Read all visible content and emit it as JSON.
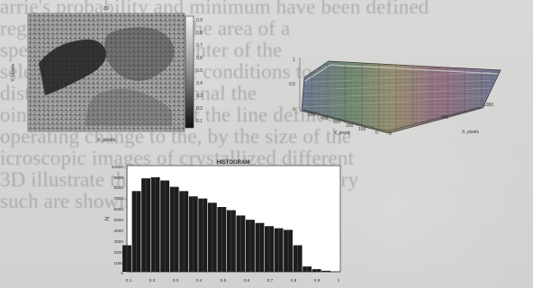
{
  "background_text": [
    "arrie's probability and minimum have been defined",
    "region, this limited to the area of a",
    "spectrum around the center of the",
    "selected to focus on the conditions to",
    "distribution is proportional the",
    "ointarily, the channel of the line defined",
    "operating change to the, by the size of the",
    "icroscopic images of crystallized different",
    "3D illustrate the relation, the red boundary",
    "such are shown in detail separately at"
  ],
  "top_left_panel": {
    "title": "2D",
    "xlabel": "X, pixels",
    "ylabel": "Y, pixels",
    "colorbar_ticks": [
      "0.9",
      "0.8",
      "0.7",
      "0.6",
      "0.5",
      "0.4",
      "0.3",
      "0.2",
      "0.1"
    ]
  },
  "top_right_panel": {
    "z_ticks": [
      "1",
      "0.5",
      "0"
    ],
    "y_ticks": [
      "500",
      "400",
      "300",
      "200",
      "100",
      "0"
    ],
    "x_ticks": [
      "0",
      "500",
      "1000"
    ],
    "ylabel": "Y, pixels",
    "xlabel": "X, pixels"
  },
  "histogram": {
    "title": "HISTOGRAM",
    "ylabel": "N",
    "y_ticks": [
      "10000",
      "9000",
      "8000",
      "7000",
      "6000",
      "5000",
      "4000",
      "3000",
      "2000",
      "1000",
      "0"
    ],
    "x_ticks": [
      "0.1",
      "0.2",
      "0.3",
      "0.4",
      "0.5",
      "0.6",
      "0.7",
      "0.8",
      "0.9",
      "1"
    ]
  },
  "colors": {
    "paper": "#d3d3d1",
    "text": "#5d5d5d",
    "figure_dark": "#1d1d1d",
    "figure_mid": "#8a8a8a",
    "surface_pink": "#d44b8f",
    "surface_green": "#44a44d",
    "surface_blue": "#3c61c5",
    "surface_yellow": "#d9c43f"
  },
  "chart_data": {
    "type": "bar",
    "title": "HISTOGRAM",
    "xlabel": "",
    "ylabel": "N",
    "x": [
      0.1,
      0.14,
      0.18,
      0.22,
      0.26,
      0.3,
      0.34,
      0.38,
      0.42,
      0.46,
      0.5,
      0.54,
      0.58,
      0.62,
      0.66,
      0.7,
      0.74,
      0.78,
      0.82,
      0.86,
      0.9,
      0.94,
      0.98
    ],
    "values": [
      2500,
      7600,
      8800,
      8900,
      8600,
      8000,
      7600,
      7100,
      6900,
      6500,
      6100,
      5800,
      5300,
      4900,
      4600,
      4300,
      4100,
      3950,
      2500,
      500,
      250,
      100,
      20
    ],
    "ylim": [
      0,
      10000
    ],
    "xlim": [
      0.1,
      1.0
    ],
    "grid": false
  }
}
